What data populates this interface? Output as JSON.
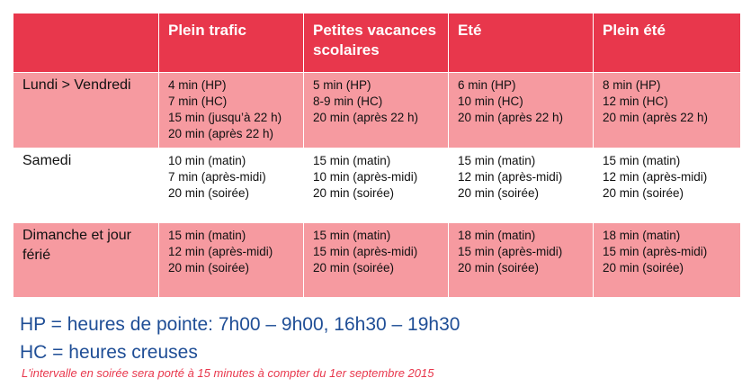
{
  "table": {
    "headers": [
      "",
      "Plein trafic",
      "Petites vacances scolaires",
      "Eté",
      "Plein été"
    ],
    "rows": [
      {
        "label": "Lundi > Vendredi",
        "cells": [
          [
            "4 min (HP)",
            "7 min (HC)",
            "15 min (jusqu’à 22 h)",
            "20 min (après 22 h)"
          ],
          [
            "5 min (HP)",
            "8-9 min (HC)",
            "20 min (après 22 h)"
          ],
          [
            "6 min (HP)",
            "10 min (HC)",
            "20 min (après 22 h)"
          ],
          [
            "8 min (HP)",
            "12 min (HC)",
            "20 min (après 22 h)"
          ]
        ]
      },
      {
        "label": "Samedi",
        "cells": [
          [
            "10 min (matin)",
            "7 min (après-midi)",
            "20 min (soirée)"
          ],
          [
            "15 min (matin)",
            "10 min (après-midi)",
            "20 min (soirée)"
          ],
          [
            "15 min (matin)",
            "12 min (après-midi)",
            "20 min (soirée)"
          ],
          [
            "15 min (matin)",
            "12 min (après-midi)",
            "20 min (soirée)"
          ]
        ]
      },
      {
        "label": "Dimanche et jour férié",
        "cells": [
          [
            "15 min (matin)",
            "12 min (après-midi)",
            "20 min (soirée)"
          ],
          [
            "15 min (matin)",
            "15 min (après-midi)",
            "20 min (soirée)"
          ],
          [
            "18 min (matin)",
            "15 min (après-midi)",
            "20 min (soirée)"
          ],
          [
            "18 min (matin)",
            "15 min (après-midi)",
            "20 min (soirée)"
          ]
        ]
      }
    ]
  },
  "legend": {
    "hp": "HP = heures de pointe: 7h00 – 9h00, 16h30 – 19h30",
    "hc": "HC = heures creuses"
  },
  "note": "L'intervalle en soirée sera porté à 15 minutes à compter du 1er septembre 2015",
  "colors": {
    "header_red": "#e8374c",
    "row_pink": "#f69aa0",
    "legend_blue": "#1f4e96",
    "note_red": "#e8374c"
  }
}
